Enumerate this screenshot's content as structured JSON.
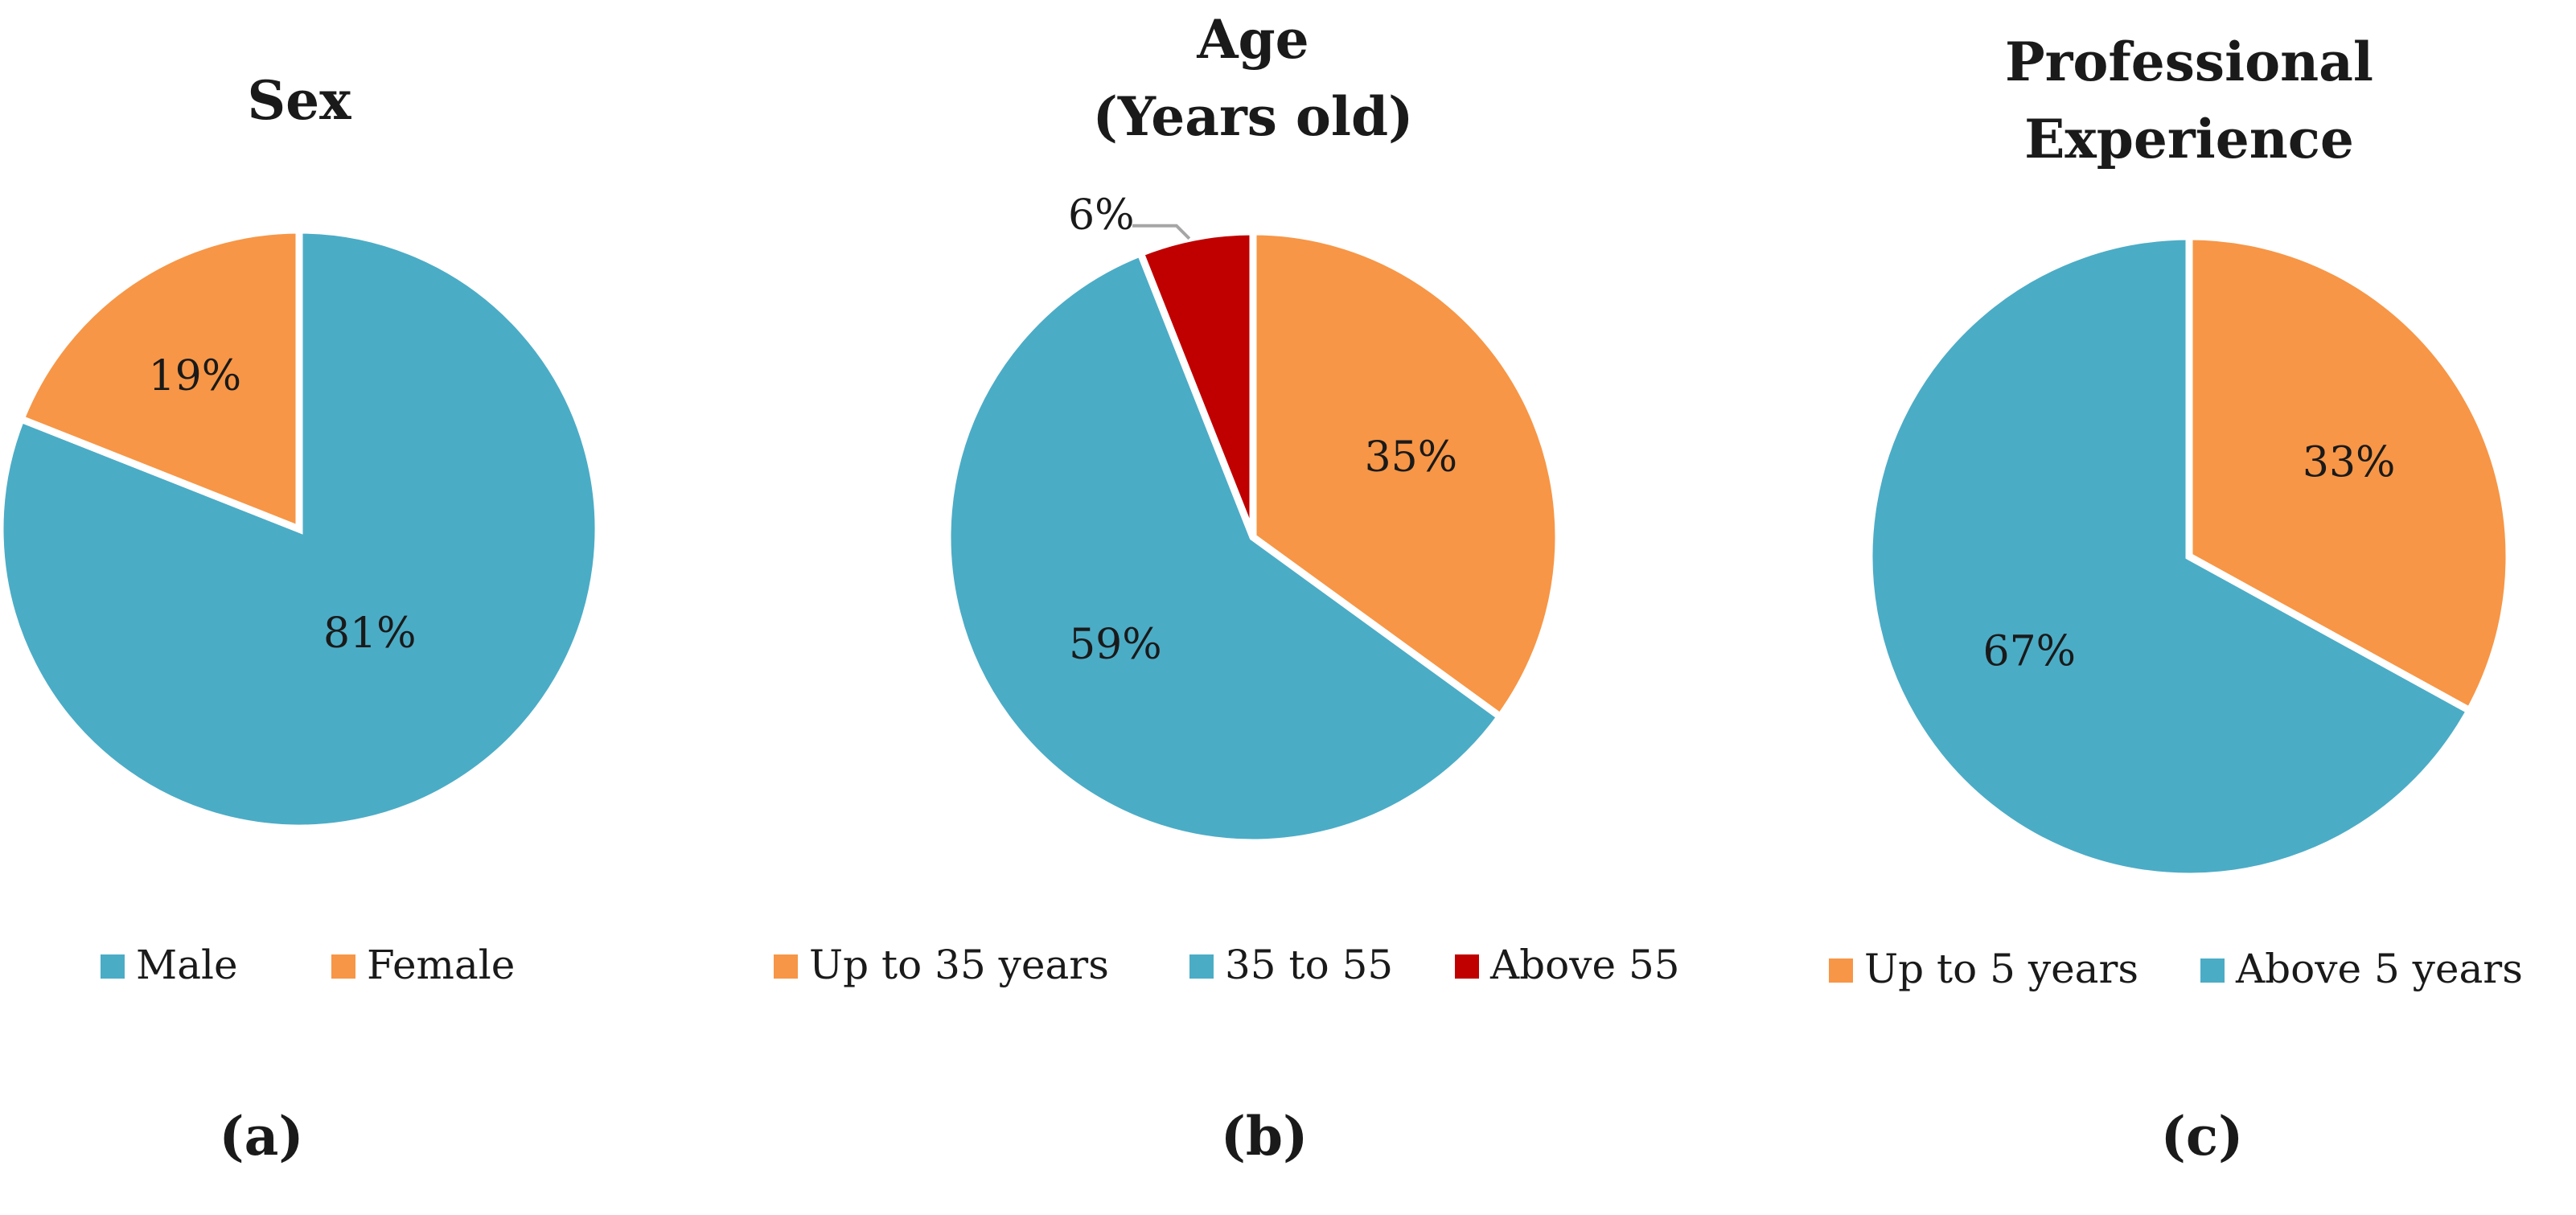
{
  "chart_data": [
    {
      "type": "pie",
      "title": "Sex",
      "panel_label": "(a)",
      "series": [
        {
          "name": "Male",
          "value": 81,
          "label": "81%",
          "color": "#4bacc6"
        },
        {
          "name": "Female",
          "value": 19,
          "label": "19%",
          "color": "#f79646"
        }
      ],
      "legend": [
        "Male",
        "Female"
      ],
      "legend_position": "bottom"
    },
    {
      "type": "pie",
      "title": [
        "Age",
        "(Years old)"
      ],
      "panel_label": "(b)",
      "series": [
        {
          "name": "Up to 35 years",
          "value": 35,
          "label": "35%",
          "color": "#f79646"
        },
        {
          "name": "35 to 55",
          "value": 59,
          "label": "59%",
          "color": "#4bacc6"
        },
        {
          "name": "Above 55",
          "value": 6,
          "label": "6%",
          "color": "#c00000"
        }
      ],
      "legend": [
        "Up to 35 years",
        "35 to 55",
        "Above 55"
      ],
      "legend_position": "bottom"
    },
    {
      "type": "pie",
      "title": [
        "Professional",
        "Experience"
      ],
      "panel_label": "(c)",
      "series": [
        {
          "name": "Up to 5 years",
          "value": 33,
          "label": "33%",
          "color": "#f79646"
        },
        {
          "name": "Above 5 years",
          "value": 67,
          "label": "67%",
          "color": "#4bacc6"
        }
      ],
      "legend": [
        "Up to 5 years",
        "Above 5 years"
      ],
      "legend_position": "bottom"
    }
  ]
}
